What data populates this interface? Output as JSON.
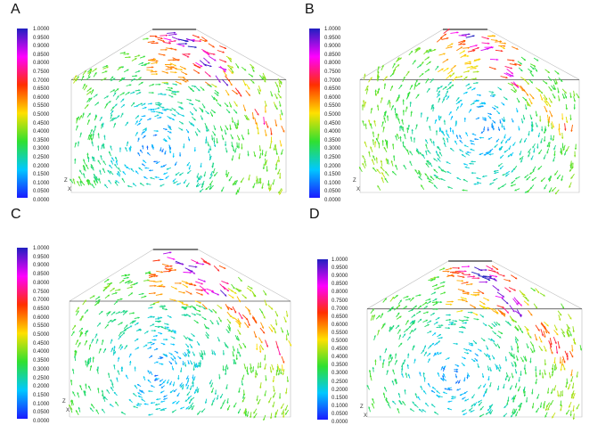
{
  "panels": [
    {
      "label": "A",
      "colors": {
        "stops": [
          "#1a1aff",
          "#00c8ff",
          "#30e030",
          "#ffe000",
          "#ff3000",
          "#ff00ff",
          "#2020c0"
        ]
      }
    },
    {
      "label": "B",
      "colors": {
        "stops": [
          "#1a1aff",
          "#00c8ff",
          "#30e030",
          "#ffe000",
          "#ff3000",
          "#ff00ff",
          "#2020c0"
        ]
      }
    },
    {
      "label": "C",
      "colors": {
        "stops": [
          "#1a1aff",
          "#00c8ff",
          "#30e030",
          "#ffe000",
          "#ff3000",
          "#ff00ff",
          "#2020c0"
        ]
      }
    },
    {
      "label": "D",
      "colors": {
        "stops": [
          "#1a1aff",
          "#00c8ff",
          "#30e030",
          "#ffe000",
          "#ff3000",
          "#ff00ff",
          "#2020c0"
        ]
      }
    }
  ],
  "colorbar_ticks": [
    "1.0000",
    "0.9500",
    "0.9000",
    "0.8500",
    "0.8000",
    "0.7500",
    "0.7000",
    "0.6500",
    "0.6000",
    "0.5500",
    "0.5000",
    "0.4500",
    "0.4000",
    "0.3500",
    "0.3000",
    "0.2500",
    "0.2000",
    "0.1500",
    "0.1000",
    "0.0500",
    "0.0000"
  ],
  "axis_labels": {
    "z": "Z",
    "x": "X"
  }
}
